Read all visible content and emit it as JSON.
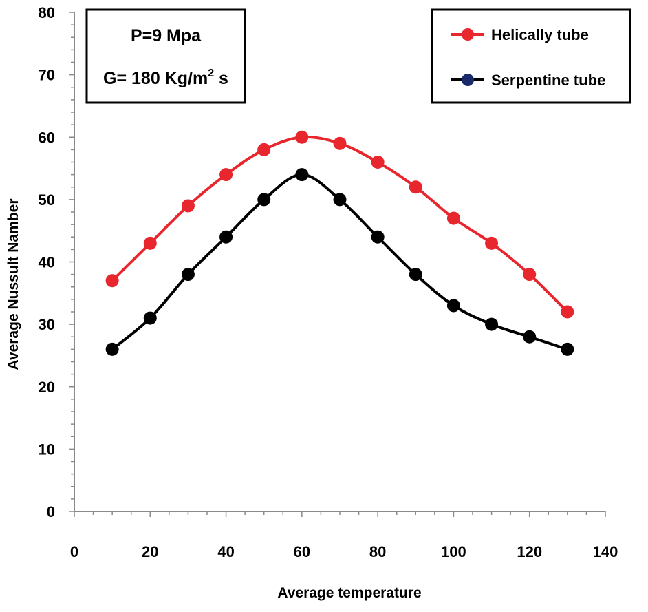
{
  "chart_data": {
    "type": "line",
    "title": "",
    "xlabel": "Average temperature",
    "ylabel": "Average Nussult Namber",
    "xlim": [
      0,
      140
    ],
    "ylim": [
      0,
      80
    ],
    "xticks": [
      0,
      20,
      40,
      60,
      80,
      100,
      120,
      140
    ],
    "yticks": [
      0,
      10,
      20,
      30,
      40,
      50,
      60,
      70,
      80
    ],
    "grid": false,
    "legend_position": "top-right",
    "annotation": {
      "line1": "P=9 Mpa",
      "line2_prefix": "G= 180 Kg/m",
      "line2_superscript": "2",
      "line2_suffix": " s"
    },
    "x": [
      10,
      20,
      30,
      40,
      50,
      60,
      70,
      80,
      90,
      100,
      110,
      120,
      130
    ],
    "series": [
      {
        "name": "Helically tube",
        "color": "#e8262d",
        "marker_color": "#e8262d",
        "values": [
          37,
          43,
          49,
          54,
          58,
          60,
          59,
          56,
          52,
          47,
          43,
          38,
          32
        ]
      },
      {
        "name": "Serpentine tube",
        "color": "#000000",
        "marker_color": "#1b2a6b",
        "values": [
          26,
          31,
          38,
          44,
          50,
          54,
          50,
          44,
          38,
          33,
          30,
          28,
          26
        ]
      }
    ]
  }
}
